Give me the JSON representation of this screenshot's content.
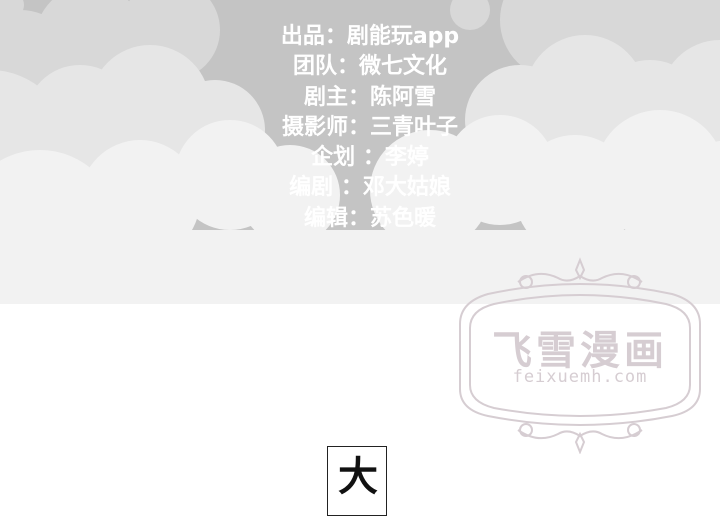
{
  "credits": [
    "出品：剧能玩app",
    "团队：微七文化",
    "剧主：陈阿雪",
    "摄影师：三青叶子",
    "企划 ：李婷",
    "编剧 ：邓大姑娘",
    "编辑：苏色暖"
  ],
  "watermark": {
    "title": "飞雪漫画",
    "url": "feixuemh.com"
  },
  "speech_bubble": {
    "text": "大"
  }
}
